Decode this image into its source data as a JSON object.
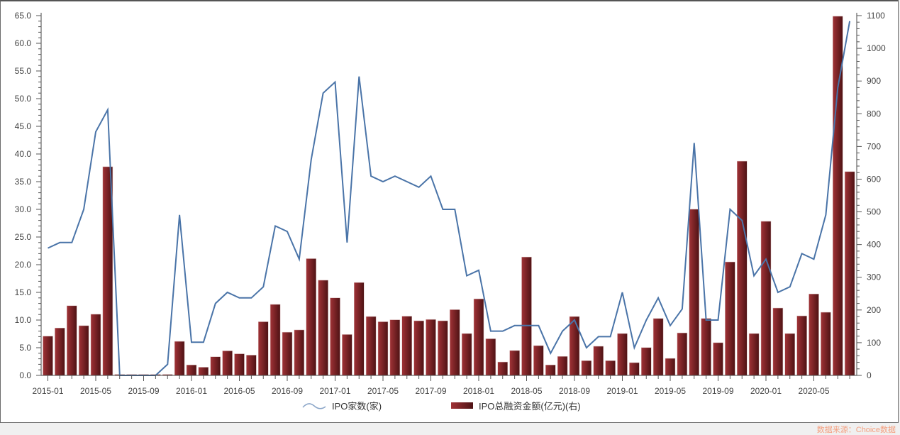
{
  "chart_data": {
    "type": "bar+line",
    "title": "",
    "categories": [
      "2015-01",
      "2015-02",
      "2015-03",
      "2015-04",
      "2015-05",
      "2015-06",
      "2015-07",
      "2015-08",
      "2015-09",
      "2015-10",
      "2015-11",
      "2015-12",
      "2016-01",
      "2016-02",
      "2016-03",
      "2016-04",
      "2016-05",
      "2016-06",
      "2016-07",
      "2016-08",
      "2016-09",
      "2016-10",
      "2016-11",
      "2016-12",
      "2017-01",
      "2017-02",
      "2017-03",
      "2017-04",
      "2017-05",
      "2017-06",
      "2017-07",
      "2017-08",
      "2017-09",
      "2017-10",
      "2017-11",
      "2017-12",
      "2018-01",
      "2018-02",
      "2018-03",
      "2018-04",
      "2018-05",
      "2018-06",
      "2018-07",
      "2018-08",
      "2018-09",
      "2018-10",
      "2018-11",
      "2018-12",
      "2019-01",
      "2019-02",
      "2019-03",
      "2019-04",
      "2019-05",
      "2019-06",
      "2019-07",
      "2019-08",
      "2019-09",
      "2019-10",
      "2019-11",
      "2019-12",
      "2020-01",
      "2020-02",
      "2020-03",
      "2020-04",
      "2020-05",
      "2020-06",
      "2020-07",
      "2020-08"
    ],
    "x_tick_labels": [
      "2015-01",
      "2015-05",
      "2015-09",
      "2016-01",
      "2016-05",
      "2016-09",
      "2017-01",
      "2017-05",
      "2017-09",
      "2018-01",
      "2018-05",
      "2018-09",
      "2019-01",
      "2019-05",
      "2019-09",
      "2020-01",
      "2020-05"
    ],
    "series": [
      {
        "name": "IPO家数(家)",
        "type": "line",
        "axis": "left",
        "color": "#4a74a8",
        "values": [
          23,
          24,
          24,
          30,
          44,
          48,
          0,
          0,
          0,
          0,
          2,
          29,
          6,
          6,
          13,
          15,
          14,
          14,
          16,
          27,
          26,
          21,
          39,
          51,
          53,
          24,
          54,
          36,
          35,
          36,
          35,
          34,
          36,
          30,
          30,
          18,
          19,
          8,
          8,
          9,
          9,
          9,
          4,
          8,
          10,
          5,
          7,
          7,
          15,
          5,
          10,
          14,
          9,
          12,
          42,
          10,
          10,
          30,
          28,
          18,
          21,
          15,
          16,
          22,
          21,
          29,
          52,
          64
        ]
      },
      {
        "name": "IPO总融资金额(亿元)(右)",
        "type": "bar",
        "axis": "right",
        "color": "#7a1f22",
        "values": [
          120,
          145,
          213,
          152,
          187,
          638,
          3,
          3,
          3,
          3,
          3,
          104,
          32,
          25,
          57,
          75,
          66,
          62,
          164,
          217,
          132,
          139,
          357,
          291,
          237,
          125,
          284,
          180,
          164,
          170,
          181,
          167,
          171,
          167,
          201,
          128,
          234,
          112,
          41,
          76,
          362,
          91,
          32,
          58,
          180,
          45,
          89,
          45,
          128,
          39,
          85,
          174,
          52,
          130,
          508,
          174,
          100,
          347,
          655,
          128,
          471,
          206,
          128,
          182,
          249,
          193,
          1098,
          623
        ]
      }
    ],
    "left_axis": {
      "min": 0,
      "max": 65,
      "step": 5,
      "tick_labels": [
        "0.0",
        "5.0",
        "10.0",
        "15.0",
        "20.0",
        "25.0",
        "30.0",
        "35.0",
        "40.0",
        "45.0",
        "50.0",
        "55.0",
        "60.0",
        "65.0"
      ]
    },
    "right_axis": {
      "min": 0,
      "max": 1100,
      "step": 100,
      "tick_labels": [
        "0",
        "100",
        "200",
        "300",
        "400",
        "500",
        "600",
        "700",
        "800",
        "900",
        "1000",
        "1100"
      ]
    },
    "xlabel": "",
    "ylabel": "",
    "grid": false,
    "legend_position": "bottom"
  },
  "legend": {
    "line_label": "IPO家数(家)",
    "bar_label": "IPO总融资金额(亿元)(右)"
  },
  "source": "数据来源：Choice数据"
}
